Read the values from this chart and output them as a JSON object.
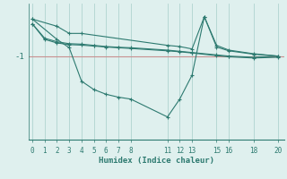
{
  "bg_color": "#dff0ee",
  "line_color": "#2d7a70",
  "grid_color": "#b0d4d0",
  "hline_color": "#c89090",
  "xlabel": "Humidex (Indice chaleur)",
  "ylabel": "-1",
  "xticks": [
    0,
    1,
    2,
    3,
    4,
    5,
    6,
    7,
    8,
    11,
    12,
    13,
    15,
    16,
    18,
    20
  ],
  "xlim": [
    -0.3,
    20.5
  ],
  "ylim": [
    -4.5,
    1.2
  ],
  "hline_y": -1.0,
  "series": [
    {
      "x": [
        0,
        2,
        3,
        4,
        11,
        12,
        13,
        14,
        15,
        16,
        18,
        20
      ],
      "y": [
        0.55,
        0.25,
        -0.05,
        -0.05,
        -0.55,
        -0.6,
        -0.7,
        0.65,
        -0.55,
        -0.75,
        -0.9,
        -1.0
      ]
    },
    {
      "x": [
        0,
        1,
        2,
        3,
        4,
        5,
        6,
        7,
        8,
        11,
        12,
        13,
        15,
        16,
        18,
        20
      ],
      "y": [
        0.35,
        -0.25,
        -0.4,
        -0.48,
        -0.5,
        -0.55,
        -0.6,
        -0.63,
        -0.65,
        -0.75,
        -0.8,
        -0.85,
        -0.95,
        -1.0,
        -1.05,
        -1.0
      ]
    },
    {
      "x": [
        0,
        1,
        2,
        3,
        4,
        5,
        6,
        7,
        8,
        11,
        12,
        13,
        15,
        16,
        18,
        20
      ],
      "y": [
        0.35,
        -0.3,
        -0.45,
        -0.52,
        -0.54,
        -0.58,
        -0.62,
        -0.65,
        -0.68,
        -0.78,
        -0.82,
        -0.87,
        -0.98,
        -1.03,
        -1.08,
        -1.05
      ]
    },
    {
      "x": [
        0,
        2,
        3,
        4,
        5,
        6,
        7,
        8,
        11,
        12,
        13,
        14,
        15,
        16,
        18,
        20
      ],
      "y": [
        0.55,
        -0.3,
        -0.65,
        -2.05,
        -2.4,
        -2.6,
        -2.72,
        -2.8,
        -3.55,
        -2.8,
        -1.8,
        0.65,
        -0.62,
        -0.78,
        -0.92,
        -1.0
      ]
    }
  ]
}
